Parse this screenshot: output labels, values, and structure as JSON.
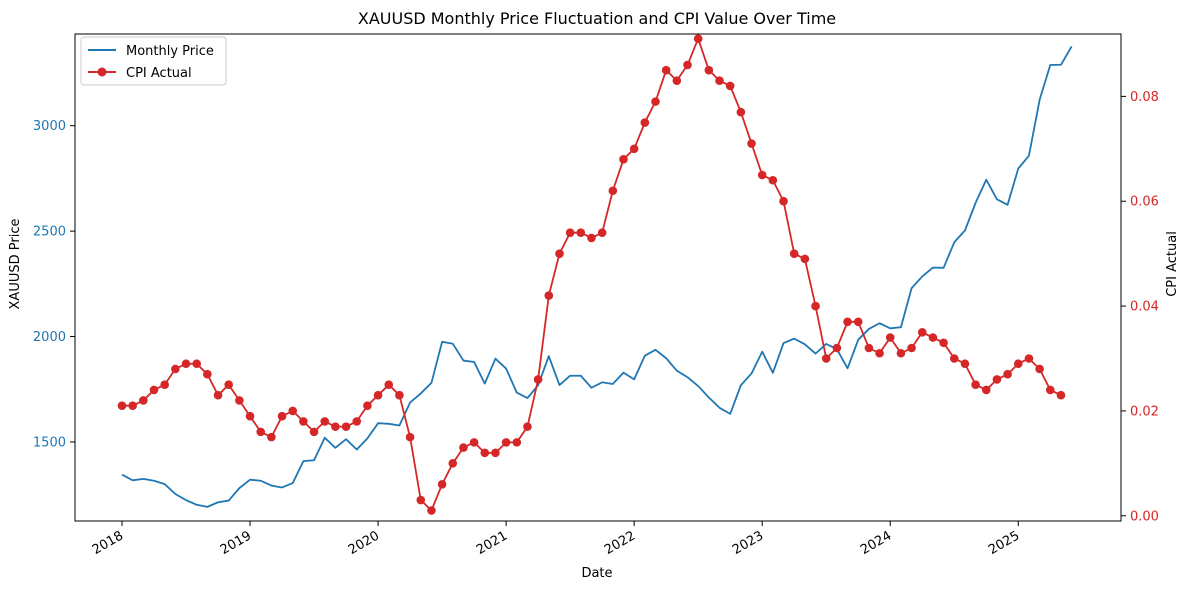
{
  "chart_data": {
    "type": "line",
    "title": "XAUUSD Monthly Price Fluctuation and CPI Value Over Time",
    "xlabel": "Date",
    "ylabel_left": "XAUUSD Price",
    "ylabel_right": "CPI Actual",
    "x_ticks": [
      "2018",
      "2019",
      "2020",
      "2021",
      "2022",
      "2023",
      "2024",
      "2025"
    ],
    "y_left_ticks": [
      "1500",
      "2000",
      "2500",
      "3000"
    ],
    "y_right_ticks": [
      "0.00",
      "0.02",
      "0.04",
      "0.06",
      "0.08"
    ],
    "ylim_left": [
      1125,
      3435
    ],
    "ylim_right": [
      -0.001,
      0.0919
    ],
    "x_start": "2018-01",
    "grid": false,
    "legend_position": "top-left",
    "colors": {
      "price": "#1f77b4",
      "cpi": "#d62728",
      "axis": "#000000"
    },
    "series": [
      {
        "name": "Monthly Price",
        "axis": "left",
        "marker": "none",
        "values": [
          1345,
          1318,
          1325,
          1316,
          1300,
          1253,
          1224,
          1202,
          1192,
          1214,
          1222,
          1281,
          1321,
          1316,
          1293,
          1284,
          1305,
          1409,
          1413,
          1520,
          1472,
          1513,
          1464,
          1517,
          1589,
          1586,
          1578,
          1687,
          1730,
          1780,
          1975,
          1966,
          1886,
          1879,
          1777,
          1895,
          1848,
          1734,
          1708,
          1769,
          1907,
          1770,
          1814,
          1814,
          1757,
          1783,
          1775,
          1829,
          1797,
          1909,
          1937,
          1897,
          1838,
          1807,
          1765,
          1711,
          1662,
          1633,
          1769,
          1825,
          1928,
          1828,
          1969,
          1990,
          1963,
          1919,
          1965,
          1940,
          1849,
          1985,
          2036,
          2063,
          2039,
          2044,
          2229,
          2285,
          2327,
          2326,
          2447,
          2503,
          2634,
          2744,
          2651,
          2625,
          2797,
          2858,
          3123,
          3288,
          3289,
          3376
        ]
      },
      {
        "name": "CPI Actual",
        "axis": "right",
        "marker": "circle",
        "values": [
          0.021,
          0.021,
          0.022,
          0.024,
          0.025,
          0.028,
          0.029,
          0.029,
          0.027,
          0.023,
          0.025,
          0.022,
          0.019,
          0.016,
          0.015,
          0.019,
          0.02,
          0.018,
          0.016,
          0.018,
          0.017,
          0.017,
          0.018,
          0.021,
          0.023,
          0.025,
          0.023,
          0.015,
          0.003,
          0.001,
          0.006,
          0.01,
          0.013,
          0.014,
          0.012,
          0.012,
          0.014,
          0.014,
          0.017,
          0.026,
          0.042,
          0.05,
          0.054,
          0.054,
          0.053,
          0.054,
          0.062,
          0.068,
          0.07,
          0.075,
          0.079,
          0.085,
          0.083,
          0.086,
          0.091,
          0.085,
          0.083,
          0.082,
          0.077,
          0.071,
          0.065,
          0.064,
          0.06,
          0.05,
          0.049,
          0.04,
          0.03,
          0.032,
          0.037,
          0.037,
          0.032,
          0.031,
          0.034,
          0.031,
          0.032,
          0.035,
          0.034,
          0.033,
          0.03,
          0.029,
          0.025,
          0.024,
          0.026,
          0.027,
          0.029,
          0.03,
          0.028,
          0.024,
          0.023
        ]
      }
    ]
  }
}
